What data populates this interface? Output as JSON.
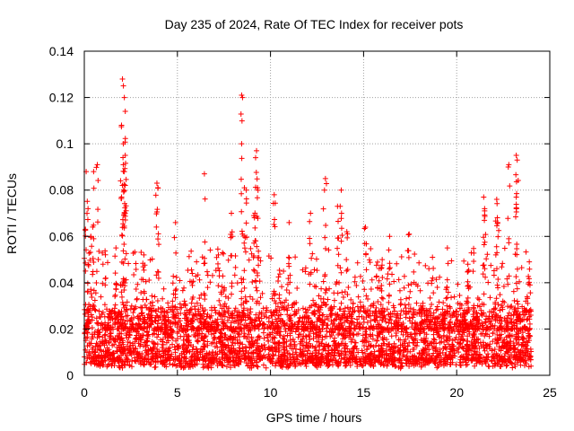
{
  "chart_data": {
    "type": "scatter",
    "title": "Day 235 of 2024, Rate Of TEC Index for receiver pots",
    "xlabel": "GPS time / hours",
    "ylabel": "ROTI / TECUs",
    "xlim": [
      0,
      25
    ],
    "ylim": [
      0,
      0.14
    ],
    "x_ticks": [
      0,
      5,
      10,
      15,
      20,
      25
    ],
    "x_tick_labels": [
      "0",
      "5",
      "10",
      "15",
      "20",
      "25"
    ],
    "y_ticks": [
      0,
      0.02,
      0.04,
      0.06,
      0.08,
      0.1,
      0.12,
      0.14
    ],
    "y_tick_labels": [
      "0",
      "0.02",
      "0.04",
      "0.06",
      "0.08",
      "0.1",
      "0.12",
      "0.14"
    ],
    "grid": true,
    "marker": "+",
    "series": [
      {
        "name": "ROTI",
        "color": "#ff0000",
        "x_range": [
          0,
          24
        ],
        "baseline_band": [
          0.005,
          0.03
        ],
        "notable_points": [
          {
            "x": 2.05,
            "y": 0.128
          },
          {
            "x": 2.1,
            "y": 0.125
          },
          {
            "x": 2.15,
            "y": 0.12
          },
          {
            "x": 2.2,
            "y": 0.114
          },
          {
            "x": 2.0,
            "y": 0.108
          },
          {
            "x": 2.1,
            "y": 0.1
          },
          {
            "x": 2.2,
            "y": 0.095
          },
          {
            "x": 2.15,
            "y": 0.088
          },
          {
            "x": 2.05,
            "y": 0.082
          },
          {
            "x": 8.45,
            "y": 0.121
          },
          {
            "x": 8.45,
            "y": 0.1
          },
          {
            "x": 9.25,
            "y": 0.097
          },
          {
            "x": 9.2,
            "y": 0.094
          },
          {
            "x": 9.3,
            "y": 0.081
          },
          {
            "x": 0.7,
            "y": 0.091
          },
          {
            "x": 0.5,
            "y": 0.088
          },
          {
            "x": 0.1,
            "y": 0.088
          },
          {
            "x": 0.2,
            "y": 0.072
          },
          {
            "x": 0.35,
            "y": 0.06
          },
          {
            "x": 23.2,
            "y": 0.095
          },
          {
            "x": 23.25,
            "y": 0.093
          },
          {
            "x": 22.8,
            "y": 0.091
          },
          {
            "x": 23.2,
            "y": 0.077
          },
          {
            "x": 12.95,
            "y": 0.085
          },
          {
            "x": 12.9,
            "y": 0.08
          },
          {
            "x": 13.8,
            "y": 0.08
          },
          {
            "x": 6.45,
            "y": 0.087
          },
          {
            "x": 3.9,
            "y": 0.083
          },
          {
            "x": 3.95,
            "y": 0.081
          },
          {
            "x": 8.6,
            "y": 0.081
          },
          {
            "x": 8.7,
            "y": 0.08
          },
          {
            "x": 10.2,
            "y": 0.078
          },
          {
            "x": 21.45,
            "y": 0.077
          },
          {
            "x": 21.5,
            "y": 0.072
          },
          {
            "x": 22.15,
            "y": 0.076
          },
          {
            "x": 22.2,
            "y": 0.066
          },
          {
            "x": 4.9,
            "y": 0.066
          },
          {
            "x": 7.9,
            "y": 0.07
          },
          {
            "x": 9.1,
            "y": 0.069
          },
          {
            "x": 11.0,
            "y": 0.066
          },
          {
            "x": 12.15,
            "y": 0.07
          },
          {
            "x": 13.6,
            "y": 0.073
          },
          {
            "x": 15.1,
            "y": 0.064
          },
          {
            "x": 17.45,
            "y": 0.061
          },
          {
            "x": 16.4,
            "y": 0.06
          },
          {
            "x": 18.7,
            "y": 0.051
          },
          {
            "x": 19.5,
            "y": 0.055
          },
          {
            "x": 20.6,
            "y": 0.048
          },
          {
            "x": 1.7,
            "y": 0.055
          },
          {
            "x": 3.2,
            "y": 0.052
          },
          {
            "x": 5.8,
            "y": 0.044
          },
          {
            "x": 7.2,
            "y": 0.052
          },
          {
            "x": 14.1,
            "y": 0.062
          },
          {
            "x": 16.0,
            "y": 0.05
          },
          {
            "x": 23.9,
            "y": 0.049
          }
        ]
      }
    ]
  }
}
